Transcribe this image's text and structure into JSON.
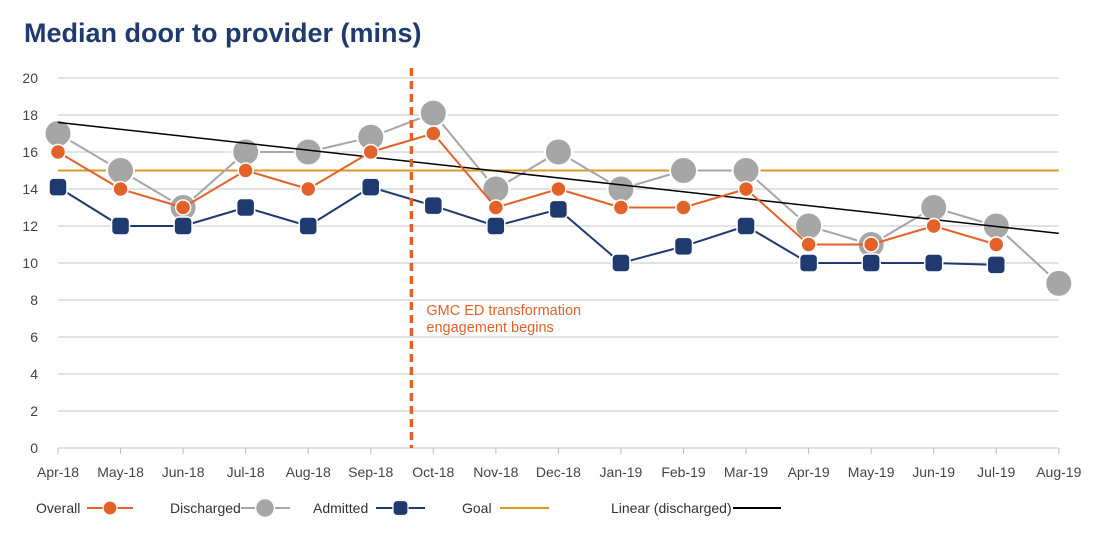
{
  "chart_data": {
    "type": "line",
    "title": "Median door to provider (mins)",
    "xlabel": "",
    "ylabel": "",
    "ylim": [
      0,
      20
    ],
    "yticks": [
      0,
      2,
      4,
      6,
      8,
      10,
      12,
      14,
      16,
      18,
      20
    ],
    "grid": true,
    "legend_position": "bottom",
    "categories": [
      "Apr-18",
      "May-18",
      "Jun-18",
      "Jul-18",
      "Aug-18",
      "Sep-18",
      "Oct-18",
      "Nov-18",
      "Dec-18",
      "Jan-19",
      "Feb-19",
      "Mar-19",
      "Apr-19",
      "May-19",
      "Jun-19",
      "Jul-19",
      "Aug-19"
    ],
    "series": [
      {
        "name": "Overall",
        "color": "#e2622a",
        "marker": "circle-small",
        "values": [
          16,
          14,
          13,
          15,
          14,
          16,
          17,
          13,
          14,
          13,
          13,
          14,
          11,
          11,
          12,
          11,
          null
        ]
      },
      {
        "name": "Discharged",
        "color": "#a6a6a6",
        "marker": "circle-large",
        "values": [
          17,
          15,
          13,
          16,
          16,
          16.8,
          18.1,
          14,
          16,
          14,
          15,
          15,
          12,
          11,
          13,
          12,
          8.9
        ]
      },
      {
        "name": "Admitted",
        "color": "#1f3a6e",
        "marker": "rounded-square",
        "values": [
          14.1,
          12,
          12,
          13,
          12,
          14.1,
          13.1,
          12,
          12.9,
          10,
          10.9,
          12,
          10,
          10,
          10,
          9.9,
          null
        ]
      },
      {
        "name": "Goal",
        "color": "#d99a26",
        "style": "horizontal-line",
        "value": 15
      },
      {
        "name": "Linear (discharged)",
        "color": "#000000",
        "style": "trendline",
        "start": 17.6,
        "end": 11.6
      }
    ],
    "annotation": {
      "lines": [
        "GMC ED transformation",
        "engagement begins"
      ],
      "color": "#e2622a",
      "at_category": 6,
      "offset": -0.35
    }
  }
}
